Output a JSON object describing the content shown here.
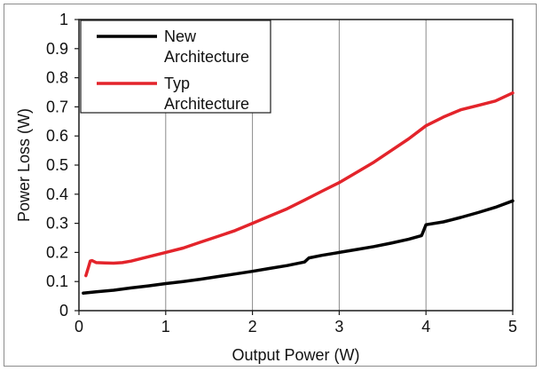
{
  "chart_data": {
    "type": "line",
    "xlabel": "Output Power (W)",
    "ylabel": "Power Loss (W)",
    "xlim": [
      0,
      5
    ],
    "ylim": [
      0,
      1
    ],
    "xticks": [
      "0",
      "1",
      "2",
      "3",
      "4",
      "5"
    ],
    "yticks": [
      "0",
      "0.1",
      "0.2",
      "0.3",
      "0.4",
      "0.5",
      "0.6",
      "0.7",
      "0.8",
      "0.9",
      "1"
    ],
    "grid": "vertical",
    "legend_position": "top-left",
    "series": [
      {
        "name_lines": [
          "New",
          "Architecture"
        ],
        "color": "#000000",
        "x": [
          0.05,
          0.2,
          0.4,
          0.6,
          0.8,
          1.0,
          1.2,
          1.4,
          1.6,
          1.8,
          2.0,
          2.2,
          2.4,
          2.6,
          2.65,
          2.8,
          3.0,
          3.2,
          3.4,
          3.6,
          3.8,
          3.95,
          4.0,
          4.2,
          4.4,
          4.6,
          4.8,
          5.0
        ],
        "y": [
          0.06,
          0.065,
          0.07,
          0.078,
          0.085,
          0.093,
          0.1,
          0.108,
          0.117,
          0.126,
          0.135,
          0.145,
          0.155,
          0.167,
          0.181,
          0.19,
          0.2,
          0.21,
          0.22,
          0.232,
          0.245,
          0.258,
          0.295,
          0.305,
          0.32,
          0.337,
          0.355,
          0.377
        ]
      },
      {
        "name_lines": [
          "Typ",
          "Architecture"
        ],
        "color": "#e3242b",
        "x": [
          0.08,
          0.11,
          0.13,
          0.15,
          0.2,
          0.3,
          0.4,
          0.5,
          0.6,
          0.8,
          1.0,
          1.2,
          1.4,
          1.6,
          1.8,
          2.0,
          2.2,
          2.4,
          2.6,
          2.8,
          3.0,
          3.2,
          3.4,
          3.6,
          3.8,
          4.0,
          4.2,
          4.4,
          4.6,
          4.8,
          5.0
        ],
        "y": [
          0.12,
          0.15,
          0.17,
          0.172,
          0.165,
          0.164,
          0.163,
          0.165,
          0.17,
          0.185,
          0.2,
          0.215,
          0.235,
          0.255,
          0.275,
          0.3,
          0.325,
          0.35,
          0.38,
          0.41,
          0.44,
          0.475,
          0.51,
          0.55,
          0.59,
          0.635,
          0.665,
          0.69,
          0.705,
          0.72,
          0.748
        ]
      }
    ]
  }
}
